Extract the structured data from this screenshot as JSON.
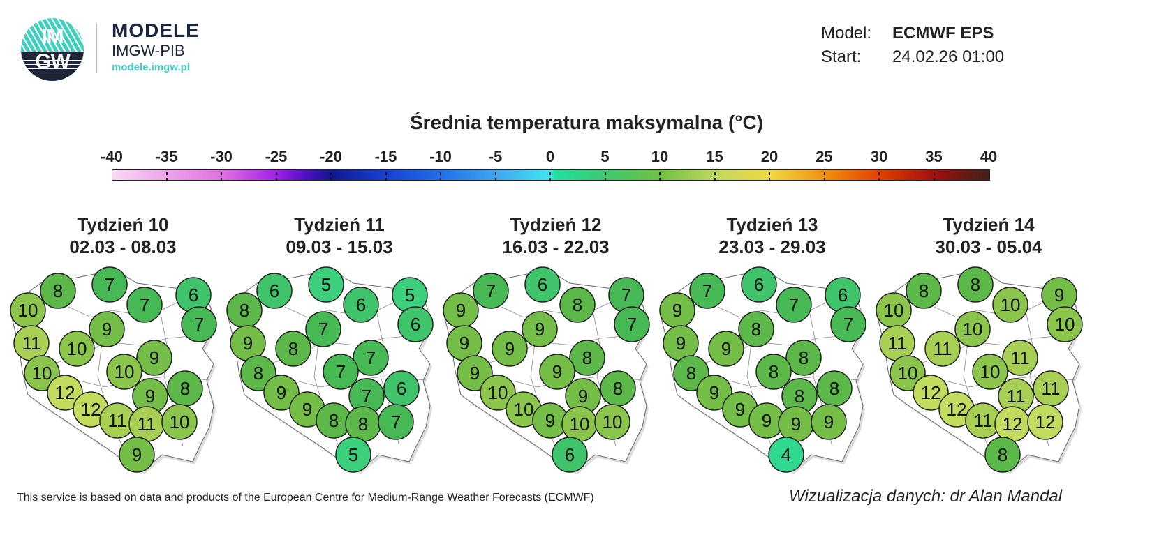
{
  "logo": {
    "circle_top": "IM",
    "circle_bottom": "GW",
    "title": "MODELE",
    "subtitle": "IMGW-PIB",
    "url": "modele.imgw.pl",
    "colors": {
      "teal": "#3fd1bd",
      "navy": "#1d2640"
    }
  },
  "meta": {
    "model_label": "Model:",
    "model_value": "ECMWF EPS",
    "start_label": "Start:",
    "start_value": "24.02.26 01:00"
  },
  "legend": {
    "title": "Średnia temperatura maksymalna (°C)",
    "ticks": [
      "-40",
      "-35",
      "-30",
      "-25",
      "-20",
      "-15",
      "-10",
      "-5",
      "0",
      "5",
      "10",
      "15",
      "20",
      "25",
      "30",
      "35",
      "40"
    ],
    "range": [
      -40,
      40
    ]
  },
  "value_colors": {
    "4": "#2fd98f",
    "5": "#3ccf7c",
    "6": "#3fc46b",
    "7": "#46b955",
    "8": "#5cb848",
    "9": "#74bd47",
    "10": "#8cc54c",
    "11": "#a6cf54",
    "12": "#c1dc5e"
  },
  "weeks": [
    {
      "title": "Tydzień 10",
      "dates": "02.03 - 08.03",
      "values": [
        8,
        7,
        7,
        6,
        10,
        7,
        9,
        11,
        10,
        9,
        10,
        10,
        12,
        9,
        8,
        12,
        11,
        11,
        10,
        9
      ]
    },
    {
      "title": "Tydzień 11",
      "dates": "09.03 - 15.03",
      "values": [
        6,
        5,
        6,
        5,
        8,
        6,
        7,
        9,
        8,
        7,
        8,
        7,
        9,
        7,
        6,
        9,
        8,
        8,
        7,
        5
      ]
    },
    {
      "title": "Tydzień 12",
      "dates": "16.03 - 22.03",
      "values": [
        7,
        6,
        8,
        7,
        9,
        7,
        9,
        9,
        9,
        8,
        9,
        9,
        10,
        9,
        8,
        10,
        9,
        10,
        10,
        6
      ]
    },
    {
      "title": "Tydzień 13",
      "dates": "23.03 - 29.03",
      "values": [
        7,
        6,
        7,
        6,
        9,
        7,
        8,
        9,
        9,
        8,
        8,
        8,
        9,
        8,
        8,
        9,
        9,
        9,
        9,
        4
      ]
    },
    {
      "title": "Tydzień 14",
      "dates": "30.03 - 05.04",
      "values": [
        8,
        8,
        10,
        9,
        10,
        10,
        10,
        11,
        11,
        11,
        10,
        10,
        12,
        11,
        11,
        12,
        11,
        12,
        12,
        8
      ]
    }
  ],
  "footer": {
    "notice": "This service is based on data and products of the European Centre for Medium-Range Weather Forecasts (ECMWF)",
    "credit": "Wizualizacja danych: dr Alan Mandal"
  }
}
